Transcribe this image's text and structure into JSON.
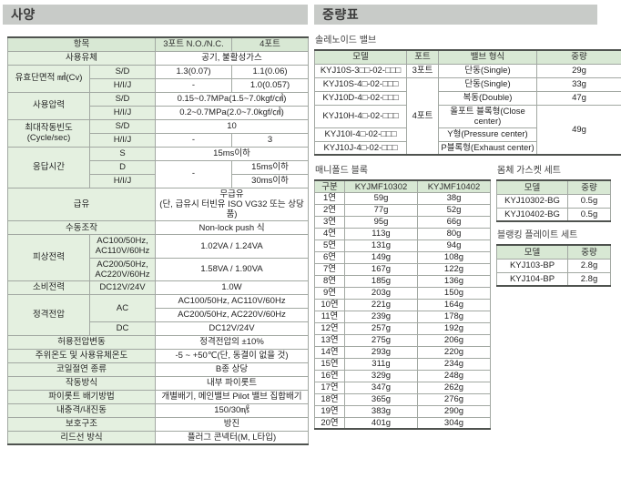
{
  "colors": {
    "title_bar_bg": "#c8cbc8",
    "header_bg": "#d8e8d4",
    "label_bg": "#e4f0e0"
  },
  "spec": {
    "title": "사양",
    "table": {
      "widths": [
        90,
        72,
        84,
        84
      ],
      "rows": [
        [
          {
            "t": "항목",
            "cs": 2,
            "c": "h"
          },
          {
            "t": "3포트 N.O./N.C.",
            "c": "h"
          },
          {
            "t": "4포트",
            "c": "h"
          }
        ],
        [
          {
            "t": "사용유체",
            "cs": 2,
            "c": "l"
          },
          {
            "t": "공기, 불활성가스",
            "cs": 2
          }
        ],
        [
          {
            "t": "유효단면적 ㎟(Cv)",
            "rs": 2,
            "c": "l"
          },
          {
            "t": "S/D",
            "c": "s"
          },
          {
            "t": "1.3(0.07)"
          },
          {
            "t": "1.1(0.06)"
          }
        ],
        [
          {
            "t": "H/I/J",
            "c": "s"
          },
          {
            "t": "-"
          },
          {
            "t": "1.0(0.057)"
          }
        ],
        [
          {
            "t": "사용압력",
            "rs": 2,
            "c": "l"
          },
          {
            "t": "S/D",
            "c": "s"
          },
          {
            "t": "0.15~0.7MPa(1.5~7.0kgf/㎠)",
            "cs": 2
          }
        ],
        [
          {
            "t": "H/I/J",
            "c": "s"
          },
          {
            "t": "0.2~0.7MPa(2.0~7.0kgf/㎠)",
            "cs": 2
          }
        ],
        [
          {
            "t": "최대작동빈도\n(Cycle/sec)",
            "rs": 2,
            "c": "l"
          },
          {
            "t": "S/D",
            "c": "s"
          },
          {
            "t": "10",
            "cs": 2
          }
        ],
        [
          {
            "t": "H/I/J",
            "c": "s"
          },
          {
            "t": "-"
          },
          {
            "t": "3"
          }
        ],
        [
          {
            "t": "응답시간",
            "rs": 3,
            "c": "l"
          },
          {
            "t": "S",
            "c": "s"
          },
          {
            "t": "15ms이하",
            "cs": 2
          }
        ],
        [
          {
            "t": "D",
            "c": "s"
          },
          {
            "t": "-",
            "rs": 2
          },
          {
            "t": "15ms이하"
          }
        ],
        [
          {
            "t": "H/I/J",
            "c": "s"
          },
          {
            "t": "30ms이하"
          }
        ],
        [
          {
            "t": "급유",
            "cs": 2,
            "c": "l"
          },
          {
            "t": "무급유\n(단, 급유시 터빈유 ISO VG32 또는 상당품)",
            "cs": 2,
            "c": "sm"
          }
        ],
        [
          {
            "t": "수동조작",
            "cs": 2,
            "c": "l"
          },
          {
            "t": "Non-lock push 식",
            "cs": 2
          }
        ],
        [
          {
            "t": "피상전력",
            "rs": 2,
            "c": "l"
          },
          {
            "t": "AC100/50Hz,\nAC110V/60Hz",
            "c": "s sm"
          },
          {
            "t": "1.02VA / 1.24VA",
            "cs": 2
          }
        ],
        [
          {
            "t": "AC200/50Hz,\nAC220V/60Hz",
            "c": "s sm"
          },
          {
            "t": "1.58VA / 1.90VA",
            "cs": 2
          }
        ],
        [
          {
            "t": "소비전력",
            "c": "l"
          },
          {
            "t": "DC12V/24V",
            "c": "s"
          },
          {
            "t": "1.0W",
            "cs": 2
          }
        ],
        [
          {
            "t": "정격전압",
            "rs": 3,
            "c": "l"
          },
          {
            "t": "AC",
            "rs": 2,
            "c": "s"
          },
          {
            "t": "AC100/50Hz, AC110V/60Hz",
            "cs": 2
          }
        ],
        [
          {
            "t": "AC200/50Hz, AC220V/60Hz",
            "cs": 2
          }
        ],
        [
          {
            "t": "DC",
            "c": "s"
          },
          {
            "t": "DC12V/24V",
            "cs": 2
          }
        ],
        [
          {
            "t": "허용전압변동",
            "cs": 2,
            "c": "l"
          },
          {
            "t": "정격전압의 ±10%",
            "cs": 2
          }
        ],
        [
          {
            "t": "주위온도 및 사용유체온도",
            "cs": 2,
            "c": "l"
          },
          {
            "t": "-5 ~ +50℃(단, 동결이 없을 것)",
            "cs": 2
          }
        ],
        [
          {
            "t": "코일절연 종류",
            "cs": 2,
            "c": "l"
          },
          {
            "t": "B종 상당",
            "cs": 2
          }
        ],
        [
          {
            "t": "작동방식",
            "cs": 2,
            "c": "l"
          },
          {
            "t": "내부 파이롯트",
            "cs": 2
          }
        ],
        [
          {
            "t": "파이롯트 배기방법",
            "cs": 2,
            "c": "l"
          },
          {
            "t": "개별배기, 메인밸브 Pilot 밸브 집합배기",
            "cs": 2
          }
        ],
        [
          {
            "t": "내충격/내진동",
            "cs": 2,
            "c": "l"
          },
          {
            "t": "150/30㎨",
            "cs": 2
          }
        ],
        [
          {
            "t": "보호구조",
            "cs": 2,
            "c": "l"
          },
          {
            "t": "방진",
            "cs": 2
          }
        ],
        [
          {
            "t": "리드선 방식",
            "cs": 2,
            "c": "l"
          },
          {
            "t": "플러그 콘넥터(M, L타입)",
            "cs": 2
          }
        ]
      ]
    }
  },
  "weights": {
    "title": "중량표",
    "solenoid": {
      "label": "솔레노이드 밸브",
      "widths": [
        101,
        35,
        108,
        93
      ],
      "rows": [
        [
          {
            "t": "모델",
            "c": "h"
          },
          {
            "t": "포트",
            "c": "h"
          },
          {
            "t": "밸브 형식",
            "c": "h"
          },
          {
            "t": "중량",
            "c": "h"
          }
        ],
        [
          {
            "t": "KYJ10S-3□□-02-□□□",
            "c": "ml"
          },
          {
            "t": "3포트"
          },
          {
            "t": "단동(Single)"
          },
          {
            "t": "29g"
          }
        ],
        [
          {
            "t": "KYJ10S-4□-02-□□□",
            "c": "ml"
          },
          {
            "t": "4포트",
            "rs": 5
          },
          {
            "t": "단동(Single)"
          },
          {
            "t": "33g"
          }
        ],
        [
          {
            "t": "KYJ10D-4□-02-□□□",
            "c": "ml"
          },
          {
            "t": "복동(Double)"
          },
          {
            "t": "47g"
          }
        ],
        [
          {
            "t": "KYJ10H-4□-02-□□□",
            "c": "ml"
          },
          {
            "t": "올포트 블록형(Close center)",
            "c": "ssm"
          },
          {
            "t": "49g",
            "rs": 3
          }
        ],
        [
          {
            "t": "KYJ10I-4□-02-□□□",
            "c": "ml"
          },
          {
            "t": "Y형(Pressure center)",
            "c": "ssm"
          }
        ],
        [
          {
            "t": "KYJ10J-4□-02-□□□",
            "c": "ml"
          },
          {
            "t": "P블록형(Exhaust center)",
            "c": "ssm"
          }
        ]
      ]
    },
    "manifold": {
      "label": "매니폴드 블록",
      "widths": [
        33,
        80,
        80
      ],
      "rows": [
        [
          {
            "t": "구분",
            "c": "h"
          },
          {
            "t": "KYJMF10302",
            "c": "h"
          },
          {
            "t": "KYJMF10402",
            "c": "h"
          }
        ],
        [
          "1연",
          "59g",
          "38g"
        ],
        [
          "2연",
          "77g",
          "52g"
        ],
        [
          "3연",
          "95g",
          "66g"
        ],
        [
          "4연",
          "113g",
          "80g"
        ],
        [
          "5연",
          "131g",
          "94g"
        ],
        [
          "6연",
          "149g",
          "108g"
        ],
        [
          "7연",
          "167g",
          "122g"
        ],
        [
          "8연",
          "185g",
          "136g"
        ],
        [
          "9연",
          "203g",
          "150g"
        ],
        [
          "10연",
          "221g",
          "164g"
        ],
        [
          "11연",
          "239g",
          "178g"
        ],
        [
          "12연",
          "257g",
          "192g"
        ],
        [
          "13연",
          "275g",
          "206g"
        ],
        [
          "14연",
          "293g",
          "220g"
        ],
        [
          "15연",
          "311g",
          "234g"
        ],
        [
          "16연",
          "329g",
          "248g"
        ],
        [
          "17연",
          "347g",
          "262g"
        ],
        [
          "18연",
          "365g",
          "276g"
        ],
        [
          "19연",
          "383g",
          "290g"
        ],
        [
          "20연",
          "401g",
          "304g"
        ]
      ]
    },
    "gasket": {
      "label": "몸체 가스켓 세트",
      "widths": [
        78,
        47
      ],
      "rows": [
        [
          {
            "t": "모델",
            "c": "h"
          },
          {
            "t": "중량",
            "c": "h"
          }
        ],
        [
          "KYJ10302-BG",
          "0.5g"
        ],
        [
          "KYJ10402-BG",
          "0.5g"
        ]
      ]
    },
    "blanking": {
      "label": "블랭킹 플레이트 세트",
      "widths": [
        78,
        47
      ],
      "rows": [
        [
          {
            "t": "모델",
            "c": "h"
          },
          {
            "t": "중량",
            "c": "h"
          }
        ],
        [
          "KYJ103-BP",
          "2.8g"
        ],
        [
          "KYJ104-BP",
          "2.8g"
        ]
      ]
    }
  }
}
